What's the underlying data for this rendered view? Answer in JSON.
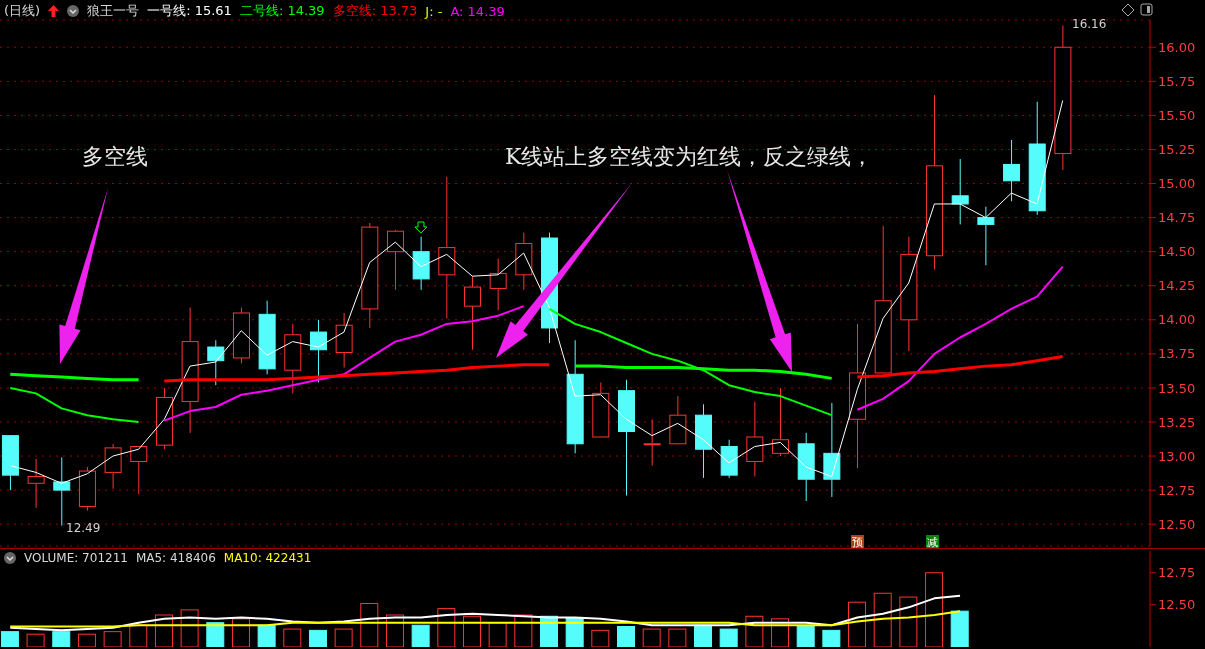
{
  "chart_data": [
    {
      "type": "candlestick",
      "title": "(日线)",
      "subtitle": "狼王一号",
      "grid": "y",
      "tick_labels": "y",
      "categories": [
        null,
        null,
        null,
        null,
        null,
        null,
        null,
        null,
        null,
        null,
        null,
        null,
        null,
        null,
        null,
        null,
        null,
        null,
        null,
        null,
        null,
        null,
        null,
        null,
        null,
        null,
        null,
        null,
        null,
        null,
        null,
        null,
        null,
        null,
        null,
        null,
        null,
        null,
        null,
        null,
        null,
        null
      ],
      "ohlc": [
        [
          13.15,
          13.15,
          12.75,
          12.86
        ],
        [
          12.8,
          12.98,
          12.62,
          12.85
        ],
        [
          12.81,
          12.99,
          12.49,
          12.75
        ],
        [
          12.63,
          12.92,
          12.6,
          12.89
        ],
        [
          12.88,
          13.09,
          12.76,
          13.06
        ],
        [
          12.96,
          13.07,
          12.72,
          13.07
        ],
        [
          13.08,
          13.5,
          13.05,
          13.43
        ],
        [
          13.4,
          14.09,
          13.17,
          13.84
        ],
        [
          13.8,
          13.85,
          13.52,
          13.7
        ],
        [
          13.72,
          14.09,
          13.68,
          14.05
        ],
        [
          14.04,
          14.14,
          13.6,
          13.64
        ],
        [
          13.63,
          13.97,
          13.46,
          13.89
        ],
        [
          13.91,
          14.0,
          13.54,
          13.78
        ],
        [
          13.76,
          14.05,
          13.65,
          13.96
        ],
        [
          14.08,
          14.71,
          13.94,
          14.68
        ],
        [
          14.5,
          14.66,
          14.22,
          14.65
        ],
        [
          14.5,
          14.61,
          14.22,
          14.3
        ],
        [
          14.33,
          15.05,
          14.01,
          14.53
        ],
        [
          14.1,
          14.32,
          13.78,
          14.24
        ],
        [
          14.23,
          14.45,
          14.07,
          14.34
        ],
        [
          14.33,
          14.64,
          14.22,
          14.56
        ],
        [
          14.6,
          14.64,
          13.83,
          13.94
        ],
        [
          13.6,
          13.85,
          13.02,
          13.09
        ],
        [
          13.14,
          13.54,
          13.14,
          13.46
        ],
        [
          13.48,
          13.56,
          12.71,
          13.18
        ],
        [
          13.09,
          13.27,
          12.93,
          13.09
        ],
        [
          13.09,
          13.44,
          13.09,
          13.3
        ],
        [
          13.3,
          13.38,
          12.84,
          13.05
        ],
        [
          13.07,
          13.12,
          12.84,
          12.86
        ],
        [
          12.96,
          13.4,
          12.85,
          13.14
        ],
        [
          13.02,
          13.5,
          13.0,
          13.12
        ],
        [
          13.09,
          13.17,
          12.67,
          12.83
        ],
        [
          13.02,
          13.39,
          12.7,
          12.83
        ],
        [
          13.27,
          13.97,
          12.91,
          13.61
        ],
        [
          13.61,
          14.69,
          13.61,
          14.14
        ],
        [
          14.0,
          14.61,
          13.77,
          14.48
        ],
        [
          14.47,
          15.65,
          14.37,
          15.13
        ],
        [
          14.91,
          15.18,
          14.7,
          14.85
        ],
        [
          14.75,
          14.83,
          14.4,
          14.7
        ],
        [
          15.14,
          15.32,
          14.87,
          15.02
        ],
        [
          15.29,
          15.6,
          14.77,
          14.8
        ],
        [
          15.22,
          16.16,
          15.1,
          16.0
        ]
      ],
      "colors": [
        "#54fcfc",
        "#ff3232",
        "#54fcfc",
        "#ff3232",
        "#ff3232",
        "#ff3232",
        "#ff3232",
        "#ff3232",
        "#54fcfc",
        "#ff3232",
        "#54fcfc",
        "#ff3232",
        "#54fcfc",
        "#ff3232",
        "#ff3232",
        "#ff3232",
        "#54fcfc",
        "#ff3232",
        "#ff3232",
        "#ff3232",
        "#ff3232",
        "#54fcfc",
        "#54fcfc",
        "#ff3232",
        "#54fcfc",
        "#ff3232",
        "#ff3232",
        "#54fcfc",
        "#54fcfc",
        "#ff3232",
        "#ff3232",
        "#54fcfc",
        "#54fcfc",
        "#ff3232",
        "#ff3232",
        "#ff3232",
        "#ff3232",
        "#54fcfc",
        "#54fcfc",
        "#54fcfc",
        "#54fcfc",
        "#ff3232"
      ],
      "series": [
        {
          "type": "line",
          "color": "#ffffff",
          "values": [
            12.93,
            12.88,
            12.8,
            12.87,
            13.0,
            13.05,
            13.27,
            13.66,
            13.69,
            13.92,
            13.74,
            13.84,
            13.8,
            13.91,
            14.42,
            14.57,
            14.39,
            14.48,
            14.32,
            14.33,
            14.49,
            14.09,
            13.44,
            13.45,
            13.27,
            13.15,
            13.24,
            13.12,
            12.95,
            13.07,
            13.1,
            12.92,
            12.85,
            13.49,
            14.01,
            14.27,
            14.85,
            14.85,
            14.75,
            14.93,
            14.85,
            15.61
          ]
        },
        {
          "type": "line",
          "color": "#00ff00",
          "values": [
            13.5,
            13.46,
            13.35,
            13.3,
            13.27,
            13.25,
            null,
            null,
            null,
            null,
            null,
            null,
            null,
            null,
            null,
            null,
            null,
            null,
            null,
            null,
            null,
            14.08,
            13.97,
            13.91,
            13.83,
            13.75,
            13.7,
            13.63,
            13.52,
            13.47,
            13.44,
            13.37,
            13.3,
            null,
            null,
            null,
            null,
            null,
            null,
            null,
            null,
            null
          ]
        },
        {
          "type": "line",
          "color": "#ff00ff",
          "values": [
            null,
            null,
            null,
            null,
            null,
            null,
            13.26,
            13.33,
            13.36,
            13.45,
            13.48,
            13.52,
            13.56,
            13.6,
            13.72,
            13.84,
            13.89,
            13.97,
            13.99,
            14.03,
            14.1,
            null,
            null,
            null,
            null,
            null,
            null,
            null,
            null,
            null,
            null,
            null,
            null,
            13.34,
            13.42,
            13.55,
            13.75,
            13.87,
            13.97,
            14.08,
            14.17,
            14.39
          ]
        },
        {
          "type": "line",
          "color": "#ff0000",
          "values": [
            null,
            null,
            null,
            null,
            null,
            null,
            13.55,
            13.56,
            13.56,
            13.56,
            13.56,
            13.57,
            13.58,
            13.59,
            13.6,
            13.61,
            13.62,
            13.63,
            13.65,
            13.66,
            13.67,
            13.67,
            null,
            null,
            null,
            null,
            null,
            null,
            null,
            null,
            null,
            null,
            null,
            13.58,
            13.59,
            13.61,
            13.62,
            13.64,
            13.66,
            13.67,
            13.7,
            13.73
          ]
        },
        {
          "type": "line",
          "color": "#00ff00",
          "values": [
            13.6,
            13.59,
            13.58,
            13.57,
            13.56,
            13.56,
            null,
            null,
            null,
            null,
            null,
            null,
            null,
            null,
            null,
            null,
            null,
            null,
            null,
            null,
            null,
            null,
            13.66,
            13.66,
            13.65,
            13.65,
            13.65,
            13.64,
            13.63,
            13.63,
            13.62,
            13.6,
            13.57,
            null,
            null,
            null,
            null,
            null,
            null,
            null,
            null,
            null
          ]
        }
      ],
      "ylim": [
        12.34,
        16.2
      ],
      "yticks": [
        {
          "value": 12.5,
          "label": "12.50"
        },
        {
          "value": 12.75,
          "label": "12.75"
        },
        {
          "value": 13,
          "label": "13.00"
        },
        {
          "value": 13.25,
          "label": "13.25"
        },
        {
          "value": 13.5,
          "label": "13.50"
        },
        {
          "value": 13.75,
          "label": "13.75"
        },
        {
          "value": 14,
          "label": "14.00"
        },
        {
          "value": 14.25,
          "label": "14.25"
        },
        {
          "value": 14.5,
          "label": "14.50"
        },
        {
          "value": 14.75,
          "label": "14.75"
        },
        {
          "value": 15,
          "label": "15.00"
        },
        {
          "value": 15.25,
          "label": "15.25"
        },
        {
          "value": 15.5,
          "label": "15.50"
        },
        {
          "value": 15.75,
          "label": "15.75"
        },
        {
          "value": 16,
          "label": "16.00"
        }
      ],
      "annotations": [
        "一号线: 15.61",
        "二号线: 14.39",
        "多空线: 13.73",
        "J: -",
        "A: 14.39",
        "多空线",
        "K线站上多空线变为红线，反之绿线，",
        "12.49",
        "16.16",
        "预",
        "减"
      ]
    },
    {
      "type": "bar",
      "tick_labels": "y",
      "categories": [
        null,
        null,
        null,
        null,
        null,
        null,
        null,
        null,
        null,
        null,
        null,
        null,
        null,
        null,
        null,
        null,
        null,
        null,
        null,
        null,
        null,
        null,
        null,
        null,
        null,
        null,
        null,
        null,
        null,
        null,
        null,
        null,
        null,
        null,
        null,
        null,
        null,
        null,
        null,
        null,
        null,
        null
      ],
      "series": [
        {
          "type": "bar",
          "values": [
            12.29,
            12.27,
            12.29,
            12.27,
            12.29,
            12.34,
            12.42,
            12.46,
            12.36,
            12.39,
            12.34,
            12.31,
            12.3,
            12.31,
            12.51,
            12.42,
            12.34,
            12.47,
            12.41,
            12.36,
            12.42,
            12.41,
            12.4,
            12.3,
            12.33,
            12.31,
            12.31,
            12.34,
            12.31,
            12.41,
            12.39,
            12.33,
            12.3,
            12.52,
            12.59,
            12.56,
            12.75,
            12.45,
            null,
            null,
            null,
            null
          ],
          "colors": [
            "#54fcfc",
            "#ff3232",
            "#54fcfc",
            "#ff3232",
            "#ff3232",
            "#ff3232",
            "#ff3232",
            "#ff3232",
            "#54fcfc",
            "#ff3232",
            "#54fcfc",
            "#ff3232",
            "#54fcfc",
            "#ff3232",
            "#ff3232",
            "#ff3232",
            "#54fcfc",
            "#ff3232",
            "#ff3232",
            "#ff3232",
            "#ff3232",
            "#54fcfc",
            "#54fcfc",
            "#ff3232",
            "#54fcfc",
            "#ff3232",
            "#ff3232",
            "#54fcfc",
            "#54fcfc",
            "#ff3232",
            "#ff3232",
            "#54fcfc",
            "#54fcfc",
            "#ff3232",
            "#ff3232",
            "#ff3232",
            "#ff3232",
            "#54fcfc",
            null,
            null,
            null,
            null
          ]
        },
        {
          "type": "line",
          "color": "#ffffff",
          "values": [
            12.32,
            12.31,
            12.3,
            12.31,
            12.32,
            12.36,
            12.39,
            12.4,
            12.39,
            12.4,
            12.39,
            12.37,
            12.36,
            12.37,
            12.39,
            12.4,
            12.4,
            12.42,
            12.43,
            12.42,
            12.41,
            12.4,
            12.4,
            12.39,
            12.37,
            12.34,
            12.34,
            12.34,
            12.34,
            12.36,
            12.36,
            12.36,
            12.34,
            12.4,
            12.43,
            12.48,
            12.55,
            12.57,
            null,
            null,
            null,
            null
          ]
        },
        {
          "type": "line",
          "color": "#ffff00",
          "values": [
            12.33,
            12.33,
            12.33,
            12.33,
            12.33,
            12.34,
            12.34,
            12.34,
            12.34,
            12.34,
            12.34,
            12.36,
            12.36,
            12.36,
            12.36,
            12.36,
            12.36,
            12.36,
            12.36,
            12.36,
            12.36,
            12.36,
            12.36,
            12.36,
            12.36,
            12.36,
            12.36,
            12.36,
            12.36,
            12.34,
            12.34,
            12.34,
            12.34,
            12.37,
            12.39,
            12.4,
            12.42,
            12.45,
            null,
            null,
            null,
            null
          ]
        }
      ],
      "ylim": [
        12.17,
        12.92
      ],
      "yticks": [
        {
          "value": 12.5,
          "label": "12.50"
        },
        {
          "value": 12.75,
          "label": "12.75"
        }
      ],
      "annotations": [
        "VOLUME: 701211",
        "MA5: 418406",
        "MA10: 422431"
      ]
    }
  ]
}
